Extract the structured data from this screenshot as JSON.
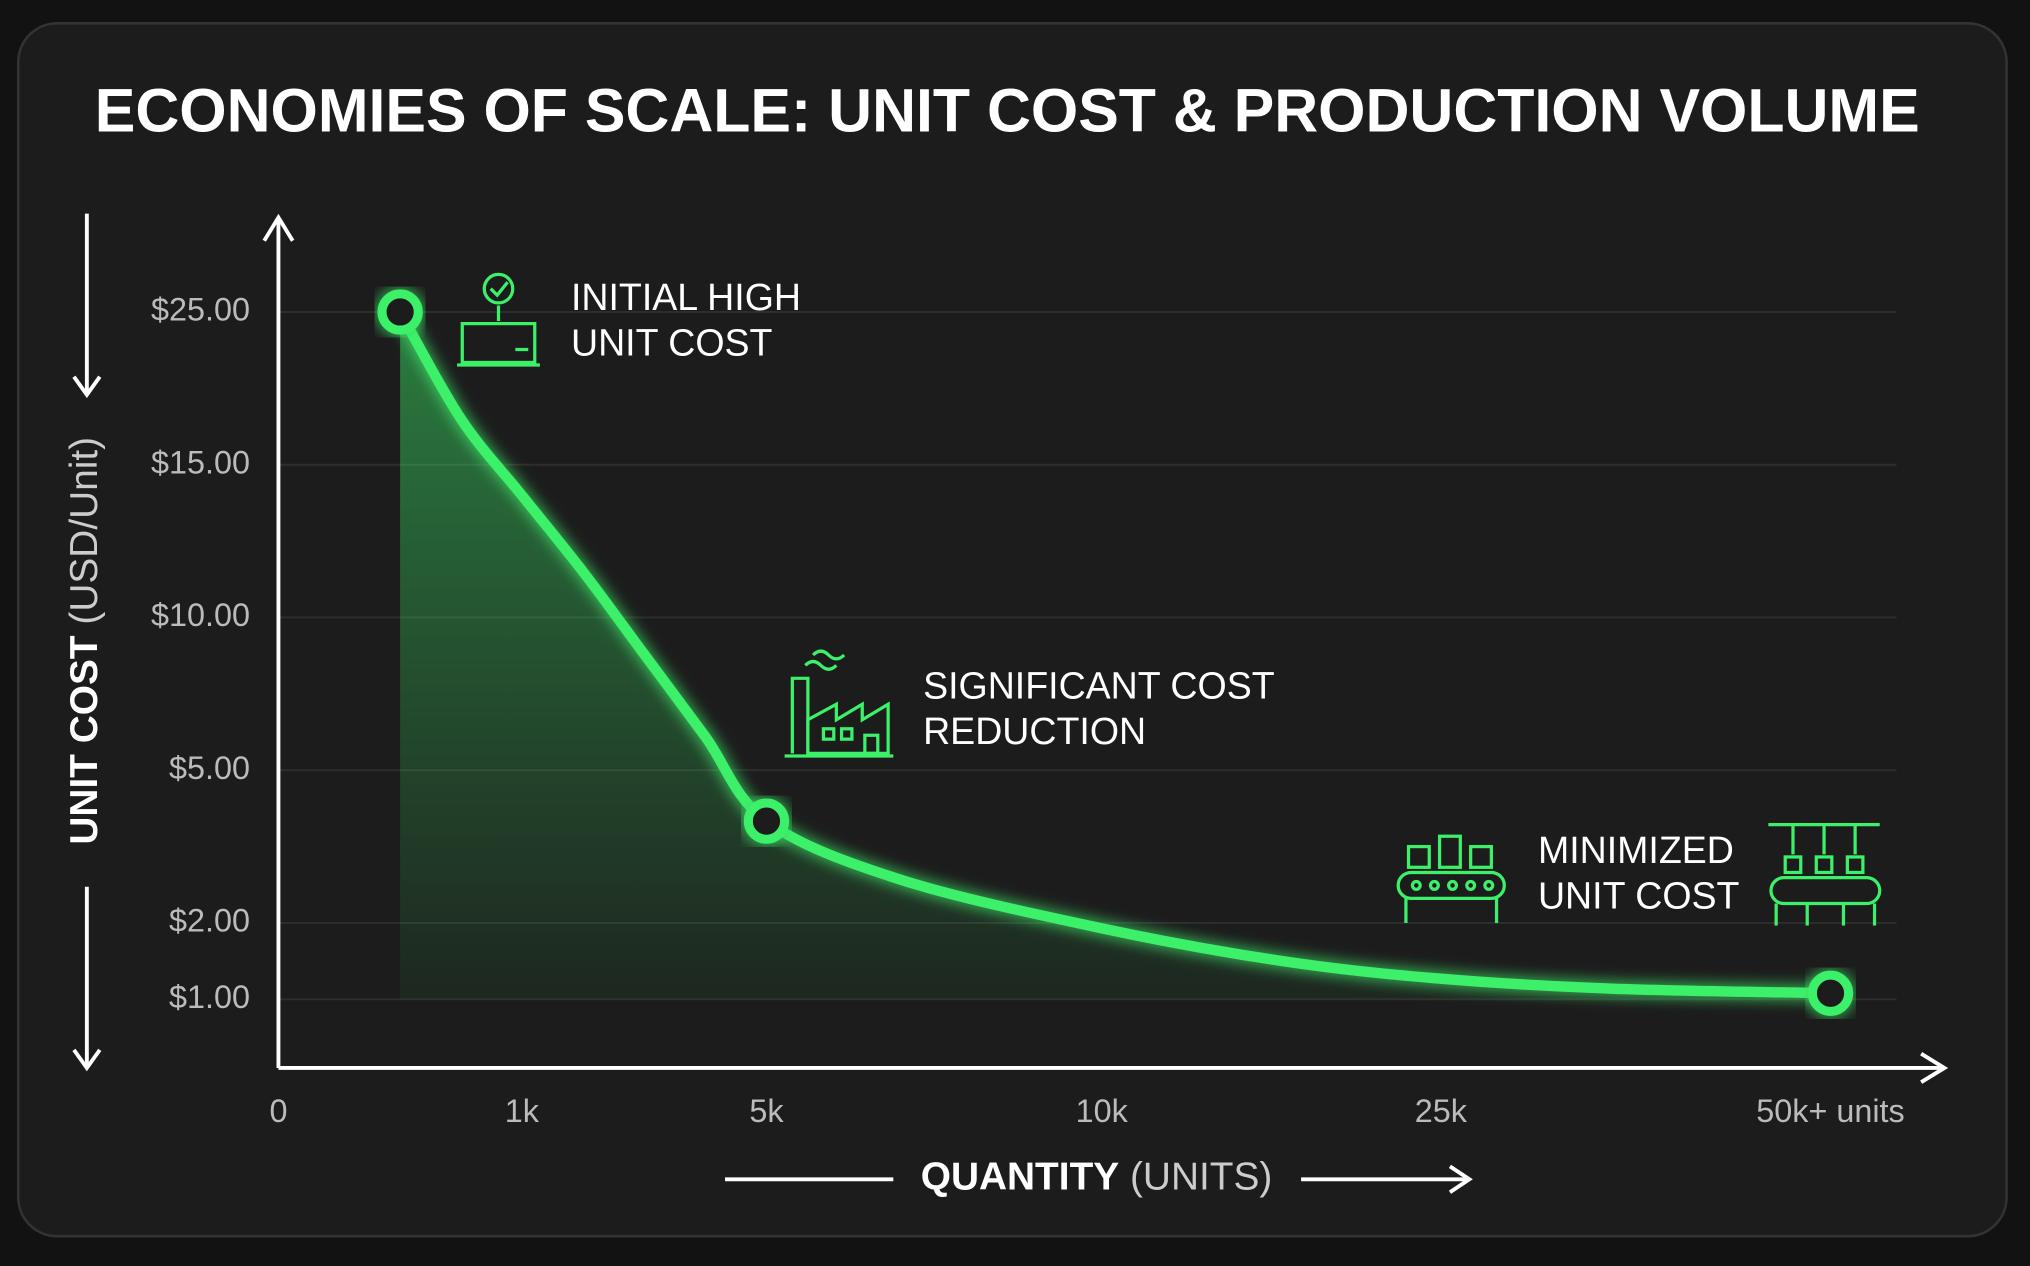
{
  "chart_data": {
    "type": "line",
    "title": "ECONOMIES OF SCALE: UNIT COST & PRODUCTION VOLUME",
    "y_label": {
      "bold": "UNIT COST",
      "normal": "(USD/Unit)"
    },
    "x_label": {
      "bold": "QUANTITY",
      "normal": "(UNITS)"
    },
    "color": "#3cf06a",
    "grid": true,
    "xticks": [
      0,
      {
        "value": 1000,
        "label": "1k"
      },
      {
        "value": 5000,
        "label": "5k"
      },
      {
        "value": 10000,
        "label": "10k"
      },
      {
        "value": 25000,
        "label": "25k"
      },
      {
        "value": 50000,
        "label": "50k+ units"
      }
    ],
    "yticks": [
      {
        "value": 25,
        "label": "$25.00"
      },
      {
        "value": 15,
        "label": "$15.00"
      },
      {
        "value": 10,
        "label": "$10.00"
      },
      {
        "value": 5,
        "label": "$5.00"
      },
      {
        "value": 2,
        "label": "$2.00"
      },
      {
        "value": 1,
        "label": "$1.00"
      }
    ],
    "line": {
      "x": [
        500,
        750,
        1000,
        2000,
        3000,
        4000,
        5000,
        7000,
        10000,
        18000,
        25000,
        36000,
        50000
      ],
      "values": [
        25,
        18,
        14,
        11.5,
        8.8,
        6.1,
        4,
        2.85,
        1.93,
        1.5,
        1.27,
        1.14,
        1.08
      ]
    },
    "points": {
      "x": [
        500,
        5000,
        50000
      ],
      "values": [
        25,
        4,
        1.08
      ]
    },
    "annotations": [
      {
        "lines": [
          "INITIAL HIGH",
          "UNIT COST"
        ]
      },
      {
        "lines": [
          "SIGNIFICANT COST",
          "REDUCTION"
        ]
      },
      {
        "lines": [
          "MINIMIZED",
          "UNIT COST"
        ]
      }
    ]
  }
}
